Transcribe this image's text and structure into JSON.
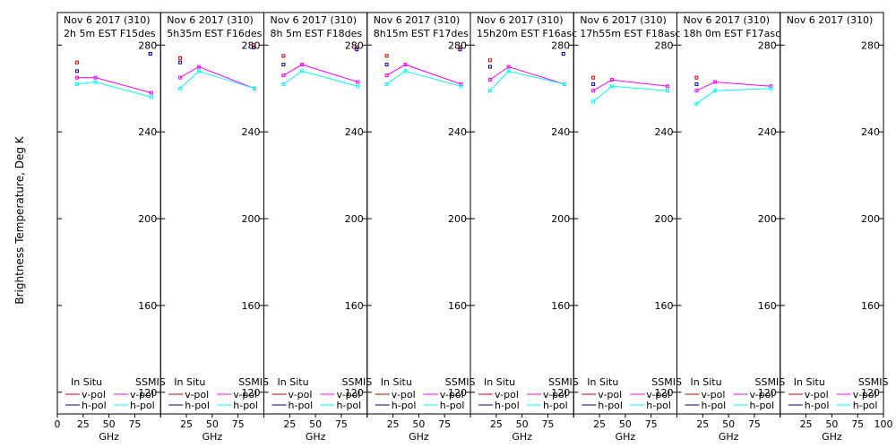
{
  "chart_data": {
    "type": "line",
    "ylabel": "Brightness Temperature, Deg K",
    "xlabel": "GHz",
    "xlim": [
      0,
      100
    ],
    "ylim": [
      110,
      295
    ],
    "xticks": [
      0,
      25,
      50,
      75,
      100
    ],
    "xtick_labels": [
      "0",
      "25",
      "50",
      "75",
      "100"
    ],
    "yticks": [
      120,
      160,
      200,
      240,
      280
    ],
    "legend": {
      "insitu_header": "In Situ",
      "ssmis_header": "SSMIS",
      "vpol": "v-pol",
      "hpol": "h-pol"
    },
    "colors": {
      "insitu_v": "#cc0000",
      "insitu_h": "#000099",
      "ssmis_v": "#ff00ff",
      "ssmis_h": "#00ffff"
    },
    "panels": [
      {
        "title": "Nov 6 2017 (310)",
        "subtitle": "2h 5m  EST F15des",
        "insitu_v": [
          {
            "x": 19,
            "y": 272
          },
          {
            "x": 90,
            "y": 276
          }
        ],
        "insitu_h": [
          {
            "x": 19,
            "y": 268
          },
          {
            "x": 90,
            "y": 276
          }
        ],
        "ssmis_v": [
          {
            "x": 19,
            "y": 265
          },
          {
            "x": 37,
            "y": 265
          },
          {
            "x": 91,
            "y": 258
          }
        ],
        "ssmis_h": [
          {
            "x": 19,
            "y": 262
          },
          {
            "x": 37,
            "y": 263
          },
          {
            "x": 91,
            "y": 256
          }
        ]
      },
      {
        "title": "Nov 6 2017 (310)",
        "subtitle": "5h35m  EST F16des",
        "insitu_v": [
          {
            "x": 19,
            "y": 274
          },
          {
            "x": 90,
            "y": 280
          }
        ],
        "insitu_h": [
          {
            "x": 19,
            "y": 272
          },
          {
            "x": 90,
            "y": 279
          }
        ],
        "ssmis_v": [
          {
            "x": 19,
            "y": 265
          },
          {
            "x": 37,
            "y": 270
          },
          {
            "x": 91,
            "y": 260
          }
        ],
        "ssmis_h": [
          {
            "x": 19,
            "y": 260
          },
          {
            "x": 37,
            "y": 268
          },
          {
            "x": 91,
            "y": 260
          }
        ]
      },
      {
        "title": "Nov 6 2017 (310)",
        "subtitle": "8h 5m  EST F18des",
        "insitu_v": [
          {
            "x": 19,
            "y": 275
          },
          {
            "x": 90,
            "y": 279
          }
        ],
        "insitu_h": [
          {
            "x": 19,
            "y": 271
          },
          {
            "x": 90,
            "y": 278
          }
        ],
        "ssmis_v": [
          {
            "x": 19,
            "y": 266
          },
          {
            "x": 37,
            "y": 271
          },
          {
            "x": 91,
            "y": 263
          }
        ],
        "ssmis_h": [
          {
            "x": 19,
            "y": 262
          },
          {
            "x": 37,
            "y": 268
          },
          {
            "x": 91,
            "y": 261
          }
        ]
      },
      {
        "title": "Nov 6 2017 (310)",
        "subtitle": "8h15m  EST F17des",
        "insitu_v": [
          {
            "x": 19,
            "y": 275
          },
          {
            "x": 90,
            "y": 279
          }
        ],
        "insitu_h": [
          {
            "x": 19,
            "y": 271
          },
          {
            "x": 90,
            "y": 278
          }
        ],
        "ssmis_v": [
          {
            "x": 19,
            "y": 266
          },
          {
            "x": 37,
            "y": 271
          },
          {
            "x": 91,
            "y": 262
          }
        ],
        "ssmis_h": [
          {
            "x": 19,
            "y": 262
          },
          {
            "x": 37,
            "y": 268
          },
          {
            "x": 91,
            "y": 261
          }
        ]
      },
      {
        "title": "Nov 6 2017 (310)",
        "subtitle": "15h20m  EST F16asc",
        "insitu_v": [
          {
            "x": 19,
            "y": 273
          }
        ],
        "insitu_h": [
          {
            "x": 19,
            "y": 270
          },
          {
            "x": 90,
            "y": 276
          }
        ],
        "ssmis_v": [
          {
            "x": 19,
            "y": 264
          },
          {
            "x": 37,
            "y": 270
          },
          {
            "x": 91,
            "y": 262
          }
        ],
        "ssmis_h": [
          {
            "x": 19,
            "y": 259
          },
          {
            "x": 37,
            "y": 268
          },
          {
            "x": 91,
            "y": 262
          }
        ]
      },
      {
        "title": "Nov 6 2017 (310)",
        "subtitle": "17h55m  EST F18asc",
        "insitu_v": [
          {
            "x": 19,
            "y": 265
          }
        ],
        "insitu_h": [
          {
            "x": 19,
            "y": 262
          }
        ],
        "ssmis_v": [
          {
            "x": 19,
            "y": 259
          },
          {
            "x": 37,
            "y": 264
          },
          {
            "x": 91,
            "y": 261
          }
        ],
        "ssmis_h": [
          {
            "x": 19,
            "y": 254
          },
          {
            "x": 37,
            "y": 261
          },
          {
            "x": 91,
            "y": 259
          }
        ]
      },
      {
        "title": "Nov 6 2017 (310)",
        "subtitle": "18h 0m  EST F17asc",
        "insitu_v": [
          {
            "x": 19,
            "y": 265
          }
        ],
        "insitu_h": [
          {
            "x": 19,
            "y": 262
          }
        ],
        "ssmis_v": [
          {
            "x": 19,
            "y": 259
          },
          {
            "x": 37,
            "y": 263
          },
          {
            "x": 91,
            "y": 261
          }
        ],
        "ssmis_h": [
          {
            "x": 19,
            "y": 253
          },
          {
            "x": 37,
            "y": 259
          },
          {
            "x": 91,
            "y": 260
          }
        ]
      },
      {
        "title": "Nov 6 2017 (310)",
        "subtitle": "",
        "insitu_v": [],
        "insitu_h": [],
        "ssmis_v": [],
        "ssmis_h": []
      }
    ]
  }
}
